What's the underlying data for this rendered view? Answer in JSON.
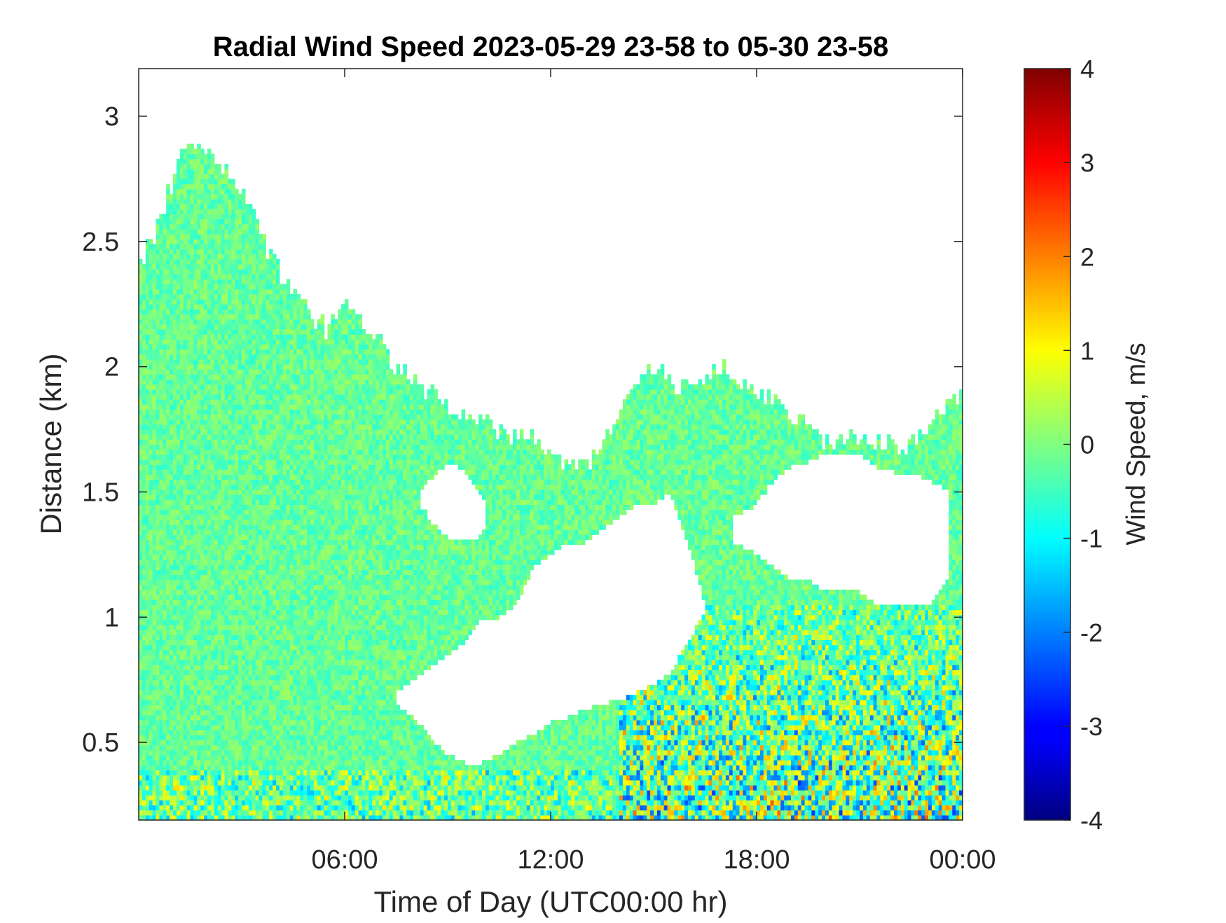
{
  "chart_data": {
    "type": "heatmap",
    "title": "Radial Wind Speed 2023-05-29 23-58 to 05-30 23-58",
    "xlabel": "Time of Day (UTC00:00 hr)",
    "ylabel": "Distance (km)",
    "colorbar_label": "Wind Speed, m/s",
    "colormap": "jet",
    "x_unit": "hours",
    "xlim": [
      0,
      24
    ],
    "ylim": [
      0.19,
      3.19
    ],
    "clim": [
      -4,
      4
    ],
    "x_ticks": [
      {
        "value": 6,
        "label": "06:00"
      },
      {
        "value": 12,
        "label": "12:00"
      },
      {
        "value": 18,
        "label": "18:00"
      },
      {
        "value": 24,
        "label": "00:00"
      }
    ],
    "y_ticks": [
      {
        "value": 0.5,
        "label": "0.5"
      },
      {
        "value": 1,
        "label": "1"
      },
      {
        "value": 1.5,
        "label": "1.5"
      },
      {
        "value": 2,
        "label": "2"
      },
      {
        "value": 2.5,
        "label": "2.5"
      },
      {
        "value": 3,
        "label": "3"
      }
    ],
    "colorbar_ticks": [
      {
        "value": 4,
        "label": "4"
      },
      {
        "value": 3,
        "label": "3"
      },
      {
        "value": 2,
        "label": "2"
      },
      {
        "value": 1,
        "label": "1"
      },
      {
        "value": 0,
        "label": "0"
      },
      {
        "value": -1,
        "label": "-1"
      },
      {
        "value": -2,
        "label": "-2"
      },
      {
        "value": -3,
        "label": "-3"
      },
      {
        "value": -4,
        "label": "-4"
      }
    ],
    "coverage_upper_km": {
      "time_h": [
        0,
        0.5,
        1,
        1.5,
        2,
        2.5,
        3,
        3.5,
        4,
        4.5,
        5,
        5.5,
        6,
        6.5,
        7,
        7.5,
        8,
        8.5,
        9,
        9.5,
        10,
        10.5,
        11,
        11.5,
        12,
        12.5,
        13,
        13.5,
        14,
        14.5,
        15,
        15.5,
        16,
        16.5,
        17,
        17.5,
        18,
        18.5,
        19,
        19.5,
        20,
        20.5,
        21,
        21.5,
        22,
        22.5,
        23,
        23.5,
        24
      ],
      "top_km": [
        2.4,
        2.55,
        2.75,
        2.9,
        2.85,
        2.8,
        2.7,
        2.55,
        2.4,
        2.3,
        2.2,
        2.15,
        2.25,
        2.2,
        2.1,
        2.0,
        1.95,
        1.9,
        1.85,
        1.8,
        1.8,
        1.75,
        1.72,
        1.7,
        1.65,
        1.6,
        1.6,
        1.7,
        1.8,
        1.95,
        2.0,
        1.95,
        1.9,
        1.95,
        2.0,
        1.95,
        1.9,
        1.85,
        1.8,
        1.75,
        1.7,
        1.7,
        1.72,
        1.7,
        1.68,
        1.7,
        1.75,
        1.85,
        1.9
      ]
    },
    "gaps_km": [
      {
        "time_h": [
          7.5,
          8,
          8.5,
          9,
          9.5,
          10,
          10.5,
          11,
          11.5,
          12,
          12.5,
          13,
          13.5,
          14,
          14.5,
          15,
          15.5,
          16,
          16.5
        ],
        "bottom_km": [
          0.65,
          0.6,
          0.52,
          0.45,
          0.42,
          0.42,
          0.45,
          0.5,
          0.53,
          0.58,
          0.6,
          0.63,
          0.65,
          0.67,
          0.7,
          0.73,
          0.78,
          0.9,
          1.02
        ],
        "top_km": [
          0.7,
          0.75,
          0.8,
          0.85,
          0.9,
          1.0,
          1.0,
          1.05,
          1.2,
          1.25,
          1.3,
          1.3,
          1.35,
          1.4,
          1.45,
          1.45,
          1.5,
          1.3,
          1.05
        ]
      },
      {
        "time_h": [
          8.2,
          8.7,
          9.2,
          9.7,
          10.1
        ],
        "bottom_km": [
          1.45,
          1.35,
          1.3,
          1.3,
          1.35
        ],
        "top_km": [
          1.5,
          1.58,
          1.62,
          1.55,
          1.45
        ]
      },
      {
        "time_h": [
          17.3,
          18,
          18.5,
          19,
          19.5,
          20,
          20.5,
          21,
          21.5,
          22,
          22.5,
          23,
          23.6
        ],
        "bottom_km": [
          1.3,
          1.25,
          1.2,
          1.15,
          1.15,
          1.1,
          1.1,
          1.1,
          1.05,
          1.05,
          1.05,
          1.05,
          1.15
        ],
        "top_km": [
          1.4,
          1.45,
          1.55,
          1.6,
          1.62,
          1.65,
          1.65,
          1.65,
          1.6,
          1.58,
          1.58,
          1.55,
          1.5
        ]
      }
    ],
    "high_variance_region": {
      "time_h": [
        14,
        24
      ],
      "max_km": 1.05
    },
    "legend": "colorbar-right",
    "grid": false
  }
}
